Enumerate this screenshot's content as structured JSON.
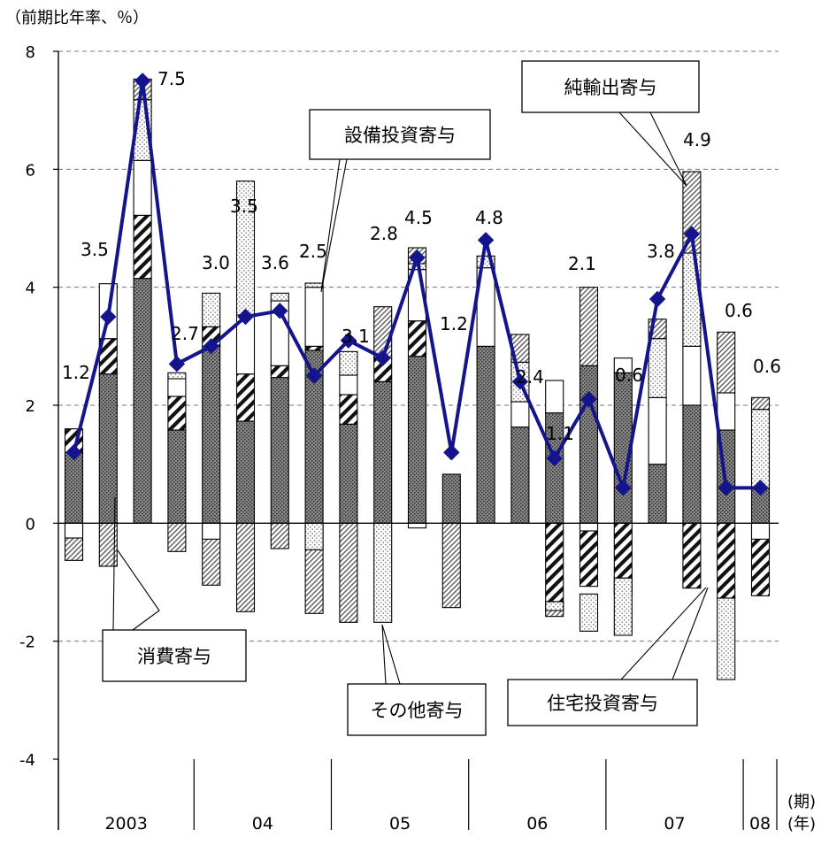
{
  "chart_data": {
    "type": "bar",
    "title": "",
    "y_unit_label": "（前期比年率、％）",
    "ylim": [
      -4,
      8
    ],
    "y_ticks": [
      "8",
      "6",
      "4",
      "2",
      "0",
      "-2",
      "-4"
    ],
    "y_tick_values": [
      8,
      6,
      4,
      2,
      0,
      -2,
      -4
    ],
    "grid": "dashed horizontal",
    "x_quarter_label": "(期)",
    "x_year_label": "(年)",
    "years": [
      {
        "label": "2003",
        "quarters": 4
      },
      {
        "label": "04",
        "quarters": 4
      },
      {
        "label": "05",
        "quarters": 4
      },
      {
        "label": "06",
        "quarters": 4
      },
      {
        "label": "07",
        "quarters": 4
      },
      {
        "label": "08",
        "quarters": 1
      }
    ],
    "stacked_series": [
      {
        "name": "消費寄与",
        "pattern": "dark-dots",
        "values": [
          1.2,
          2.53,
          4.15,
          1.58,
          3.0,
          1.73,
          2.47,
          2.93,
          1.68,
          2.4,
          2.83,
          0.83,
          3.0,
          1.63,
          1.87,
          2.67,
          2.55,
          1.0,
          2.0,
          1.58,
          0.6
        ]
      },
      {
        "name": "住宅投資寄与",
        "pattern": "diagonal-bold",
        "values": [
          0.4,
          0.6,
          1.07,
          0.57,
          0.33,
          0.8,
          0.2,
          0.07,
          0.5,
          0.4,
          0.6,
          0,
          0,
          0,
          -1.33,
          -1.07,
          -0.93,
          0,
          -1.1,
          -1.27,
          -1.23
        ]
      },
      {
        "name": "設備投資寄与",
        "pattern": "white",
        "values": [
          0,
          0.93,
          0.93,
          0.3,
          0,
          1.0,
          1.1,
          1.0,
          0.33,
          0,
          0.87,
          0,
          1.33,
          0.43,
          0.55,
          0,
          0.25,
          1.13,
          1.0,
          0.63,
          0
        ]
      },
      {
        "name": "純輸出寄与",
        "pattern": "light-dots",
        "values": [
          -0.25,
          0,
          1.03,
          0.1,
          0.57,
          2.27,
          0.13,
          0.07,
          0.4,
          0,
          0.1,
          0,
          0.2,
          0.67,
          0,
          0,
          0,
          1.0,
          1.58,
          0,
          1.33
        ]
      },
      {
        "name": "その他寄与",
        "pattern": "diagonal-fine",
        "values": [
          -0.38,
          -0.73,
          0.35,
          -0.48,
          -1.05,
          -1.5,
          -0.43,
          -1.53,
          -1.68,
          0.87,
          0.27,
          -1.43,
          0,
          0.47,
          -0.25,
          1.33,
          -0.28,
          0.33,
          1.38,
          1.03,
          0.2
        ]
      }
    ],
    "negative_extra": [
      {
        "index": 0,
        "pattern": "white",
        "from": 0,
        "to": -0.25
      },
      {
        "index": 4,
        "pattern": "white",
        "from": 0,
        "to": -0.27
      },
      {
        "index": 7,
        "pattern": "light-dots",
        "from": 0,
        "to": -0.45
      },
      {
        "index": 9,
        "pattern": "light-dots",
        "from": 0,
        "to": -1.68
      },
      {
        "index": 10,
        "pattern": "white",
        "from": 0,
        "to": -0.08
      },
      {
        "index": 14,
        "pattern": "light-dots",
        "from": -1.33,
        "to": -1.48
      },
      {
        "index": 15,
        "pattern": "white",
        "from": 0,
        "to": -0.13
      },
      {
        "index": 15,
        "pattern": "light-dots",
        "from": -1.2,
        "to": -1.83
      },
      {
        "index": 16,
        "pattern": "light-dots",
        "from": -0.93,
        "to": -1.9
      },
      {
        "index": 18,
        "pattern": "light-dots",
        "from": 0,
        "to": 0
      },
      {
        "index": 19,
        "pattern": "light-dots",
        "from": -1.27,
        "to": -2.65
      },
      {
        "index": 20,
        "pattern": "white",
        "from": 0,
        "to": -0.27
      }
    ],
    "line_series": {
      "name": "",
      "color": "#14148c",
      "values": [
        1.2,
        3.5,
        7.5,
        2.7,
        3.0,
        3.5,
        3.6,
        2.5,
        3.1,
        2.8,
        4.5,
        1.2,
        4.8,
        2.4,
        1.1,
        2.1,
        0.6,
        3.8,
        4.9,
        0.6,
        0.6
      ],
      "labels": [
        "1.2",
        "3.5",
        "7.5",
        "2.7",
        "3.0",
        "3.5",
        "3.6",
        "2.5",
        "3.1",
        "2.8",
        "4.5",
        "1.2",
        "4.8",
        "2.4",
        "1.1",
        "2.1",
        "0.6",
        "3.8",
        "4.9",
        "0.6",
        "0.6"
      ]
    },
    "callouts": [
      {
        "text": "純輸出寄与"
      },
      {
        "text": "設備投資寄与"
      },
      {
        "text": "消費寄与"
      },
      {
        "text": "その他寄与"
      },
      {
        "text": "住宅投資寄与"
      }
    ]
  }
}
